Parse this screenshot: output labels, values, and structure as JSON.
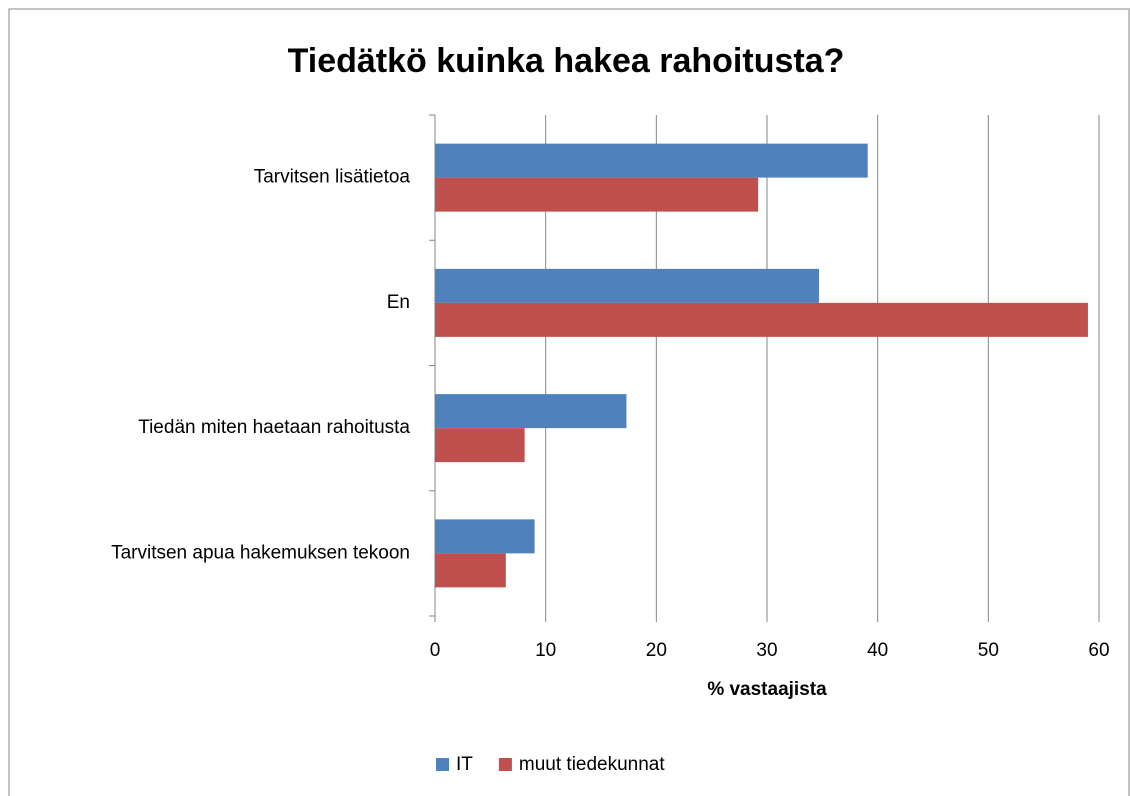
{
  "chart_data": {
    "type": "hbar",
    "title": "Tiedätkö kuinka hakea rahoitusta?",
    "x_label": "% vastaajista",
    "categories": [
      "Tarvitsen lisätietoa",
      "En",
      "Tiedän miten haetaan rahoitusta",
      "Tarvitsen apua hakemuksen tekoon"
    ],
    "series": [
      {
        "name": "IT",
        "color": "#4f81bd",
        "values": [
          39.1,
          34.7,
          17.3,
          9.0
        ]
      },
      {
        "name": "muut tiedekunnat",
        "color": "#c0504d",
        "values": [
          29.2,
          59.0,
          8.1,
          6.4
        ]
      }
    ],
    "xlim": [
      0,
      60
    ],
    "xticks": [
      0,
      10,
      20,
      30,
      40,
      50,
      60
    ],
    "grid": true,
    "legend": "bottom"
  }
}
